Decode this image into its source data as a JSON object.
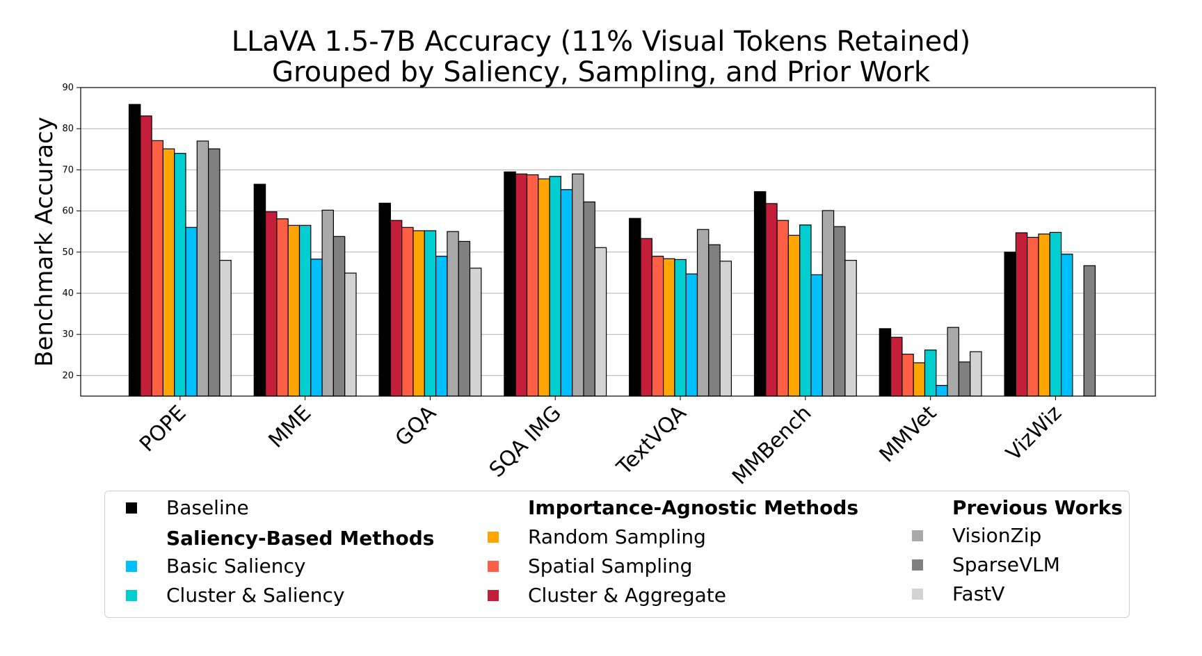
{
  "chart_data": {
    "type": "bar",
    "title": [
      "LLaVA 1.5-7B Accuracy (11% Visual Tokens Retained)",
      "Grouped by Saliency, Sampling, and Prior Work"
    ],
    "ylabel": "Benchmark Accuracy",
    "xlabel": "",
    "ylim": [
      15,
      90
    ],
    "yticks": [
      20,
      30,
      40,
      50,
      60,
      70,
      80,
      90
    ],
    "grid": true,
    "categories": [
      "POPE",
      "MME",
      "GQA",
      "SQA IMG",
      "TextVQA",
      "MMBench",
      "MMVet",
      "VizWiz"
    ],
    "series": [
      {
        "name": "Baseline",
        "color": "#000000",
        "values": [
          85.9,
          66.5,
          61.9,
          69.5,
          58.2,
          64.7,
          31.4,
          50.0
        ]
      },
      {
        "name": "Cluster & Aggregate",
        "color": "#c41e3a",
        "values": [
          83.1,
          59.8,
          57.7,
          69.0,
          53.3,
          61.8,
          29.3,
          54.7
        ]
      },
      {
        "name": "Spatial Sampling",
        "color": "#ff5f45",
        "values": [
          77.1,
          58.1,
          56.0,
          68.8,
          49.0,
          57.7,
          25.2,
          53.6
        ]
      },
      {
        "name": "Random Sampling",
        "color": "#ffa500",
        "values": [
          75.1,
          56.5,
          55.2,
          67.8,
          48.4,
          54.1,
          23.1,
          54.4
        ]
      },
      {
        "name": "Cluster & Saliency",
        "color": "#00ced1",
        "values": [
          74.0,
          56.5,
          55.2,
          68.4,
          48.2,
          56.6,
          26.2,
          54.8
        ]
      },
      {
        "name": "Basic Saliency",
        "color": "#00bfff",
        "values": [
          56.0,
          48.3,
          49.0,
          65.2,
          44.7,
          44.5,
          17.6,
          49.5
        ]
      },
      {
        "name": "VisionZip",
        "color": "#a9a9a9",
        "values": [
          77.0,
          60.2,
          55.0,
          69.0,
          55.5,
          60.1,
          31.7,
          null
        ]
      },
      {
        "name": "SparseVLM",
        "color": "#808080",
        "values": [
          75.1,
          53.8,
          52.6,
          62.2,
          51.8,
          56.2,
          23.3,
          46.7
        ]
      },
      {
        "name": "FastV",
        "color": "#d3d3d3",
        "values": [
          48.0,
          44.9,
          46.1,
          51.1,
          47.8,
          48.0,
          25.8,
          null
        ]
      }
    ]
  },
  "legend": {
    "baseline": "Baseline",
    "saliency_header": "Saliency-Based Methods",
    "basic_saliency": "Basic Saliency",
    "cluster_saliency": "Cluster & Saliency",
    "agnostic_header": "Importance-Agnostic Methods",
    "random_sampling": "Random Sampling",
    "spatial_sampling": "Spatial Sampling",
    "cluster_aggregate": "Cluster & Aggregate",
    "previous_header": "Previous Works",
    "visionzip": "VisionZip",
    "sparsevlm": "SparseVLM",
    "fastv": "FastV"
  }
}
